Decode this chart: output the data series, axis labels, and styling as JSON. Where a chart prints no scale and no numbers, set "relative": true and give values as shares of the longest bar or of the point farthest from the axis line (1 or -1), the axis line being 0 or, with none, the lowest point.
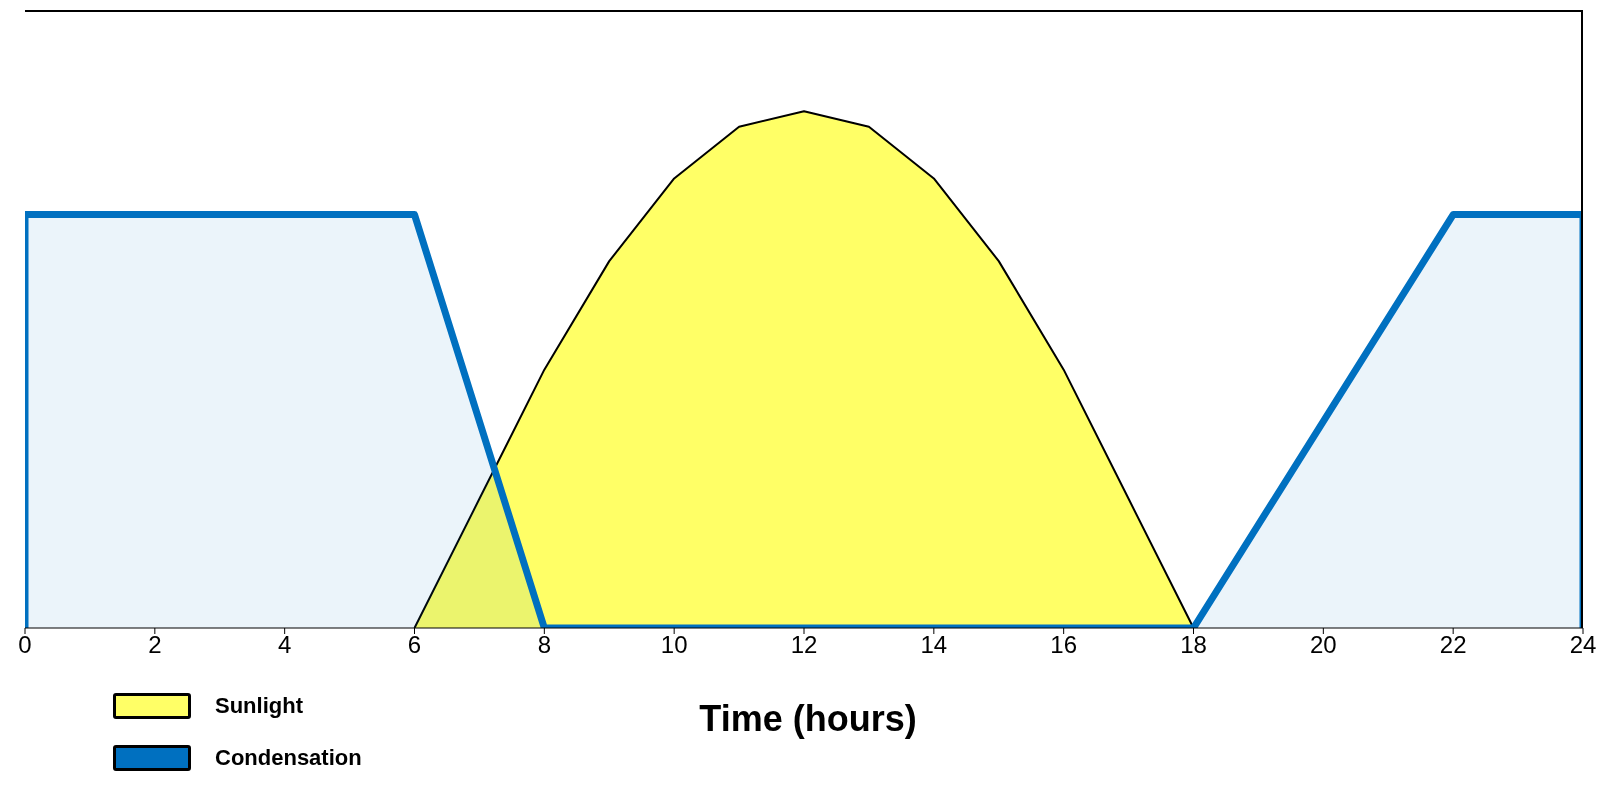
{
  "chart_data": {
    "type": "area",
    "xlabel": "Time (hours)",
    "relative": true,
    "xlim": [
      0,
      24
    ],
    "xticks": [
      0,
      2,
      4,
      6,
      8,
      10,
      12,
      14,
      16,
      18,
      20,
      22,
      24
    ],
    "legend": "bottom left",
    "series": [
      {
        "name": "Sunlight",
        "color": "#ffff66",
        "x": [
          6,
          7,
          8,
          9,
          10,
          11,
          12,
          13,
          14,
          15,
          16,
          17,
          18
        ],
        "values": [
          0,
          0.25,
          0.5,
          0.71,
          0.87,
          0.97,
          1,
          0.97,
          0.87,
          0.71,
          0.5,
          0.25,
          0
        ]
      },
      {
        "name": "Condensation",
        "color": "#0070c0",
        "x": [
          0,
          0,
          6,
          8,
          18,
          22,
          24,
          24
        ],
        "values": [
          0,
          0.8,
          0.8,
          0,
          0,
          0.8,
          0.8,
          0
        ]
      }
    ]
  }
}
